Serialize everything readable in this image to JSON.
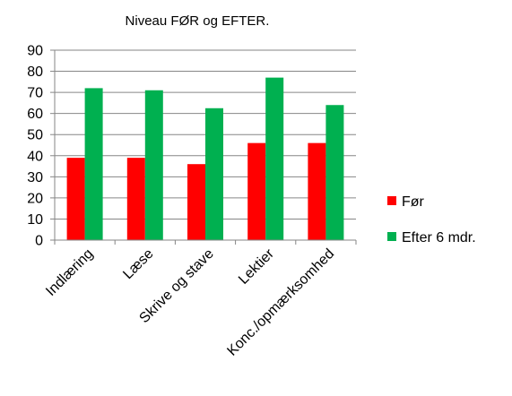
{
  "chart_data": {
    "type": "bar",
    "title": "Niveau FØR og EFTER.",
    "xlabel": "",
    "ylabel": "",
    "categories": [
      "Indlæring",
      "Læse",
      "Skrive og stave",
      "Lektier",
      "Konc./opmærksomhed"
    ],
    "series": [
      {
        "name": "Før",
        "values": [
          39,
          39,
          36,
          46,
          46
        ],
        "color": "#ff0000"
      },
      {
        "name": "Efter 6 mdr.",
        "values": [
          72,
          71,
          62.5,
          77,
          64
        ],
        "color": "#00b050"
      }
    ],
    "ylim": [
      0,
      90
    ],
    "yticks": [
      0,
      10,
      20,
      30,
      40,
      50,
      60,
      70,
      80,
      90
    ],
    "grid": true,
    "legend": "right"
  }
}
